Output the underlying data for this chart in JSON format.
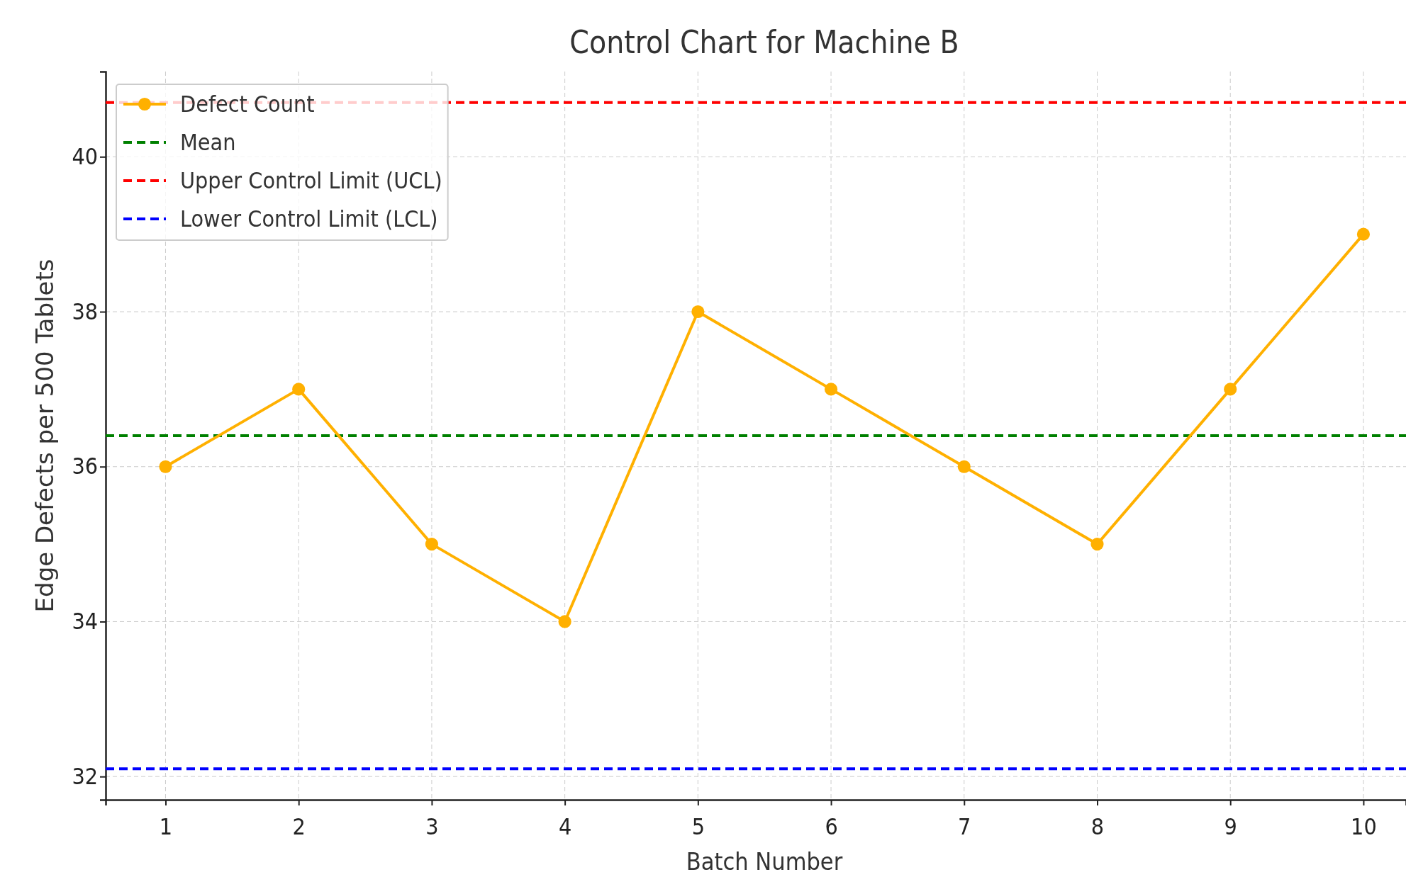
{
  "chart_data": {
    "type": "line",
    "title": "Control Chart for Machine B",
    "xlabel": "Batch Number",
    "ylabel": "Edge Defects per 500 Tablets",
    "x": [
      1,
      2,
      3,
      4,
      5,
      6,
      7,
      8,
      9,
      10
    ],
    "series": [
      {
        "name": "Defect Count",
        "color": "#ffb000",
        "values": [
          36,
          37,
          35,
          34,
          38,
          37,
          36,
          35,
          37,
          39
        ]
      }
    ],
    "xlim": [
      0.55,
      10.32
    ],
    "xticks": [
      1,
      2,
      3,
      4,
      5,
      6,
      7,
      8,
      9,
      10
    ],
    "ylim": [
      31.7,
      41.1
    ],
    "yticks": [
      32,
      34,
      36,
      38,
      40
    ],
    "ref_lines": [
      {
        "axis": "y",
        "value": 36.4,
        "label": "Mean",
        "color": "#008000",
        "line_style": "dashed"
      },
      {
        "axis": "y",
        "value": 40.7,
        "label": "Upper Control Limit (UCL)",
        "color": "#ff0000",
        "line_style": "dashed"
      },
      {
        "axis": "y",
        "value": 32.1,
        "label": "Lower Control Limit (LCL)",
        "color": "#0000ff",
        "line_style": "dashed"
      }
    ],
    "grid": true,
    "legend": "top left",
    "marker": "circle",
    "line_style": "solid"
  }
}
